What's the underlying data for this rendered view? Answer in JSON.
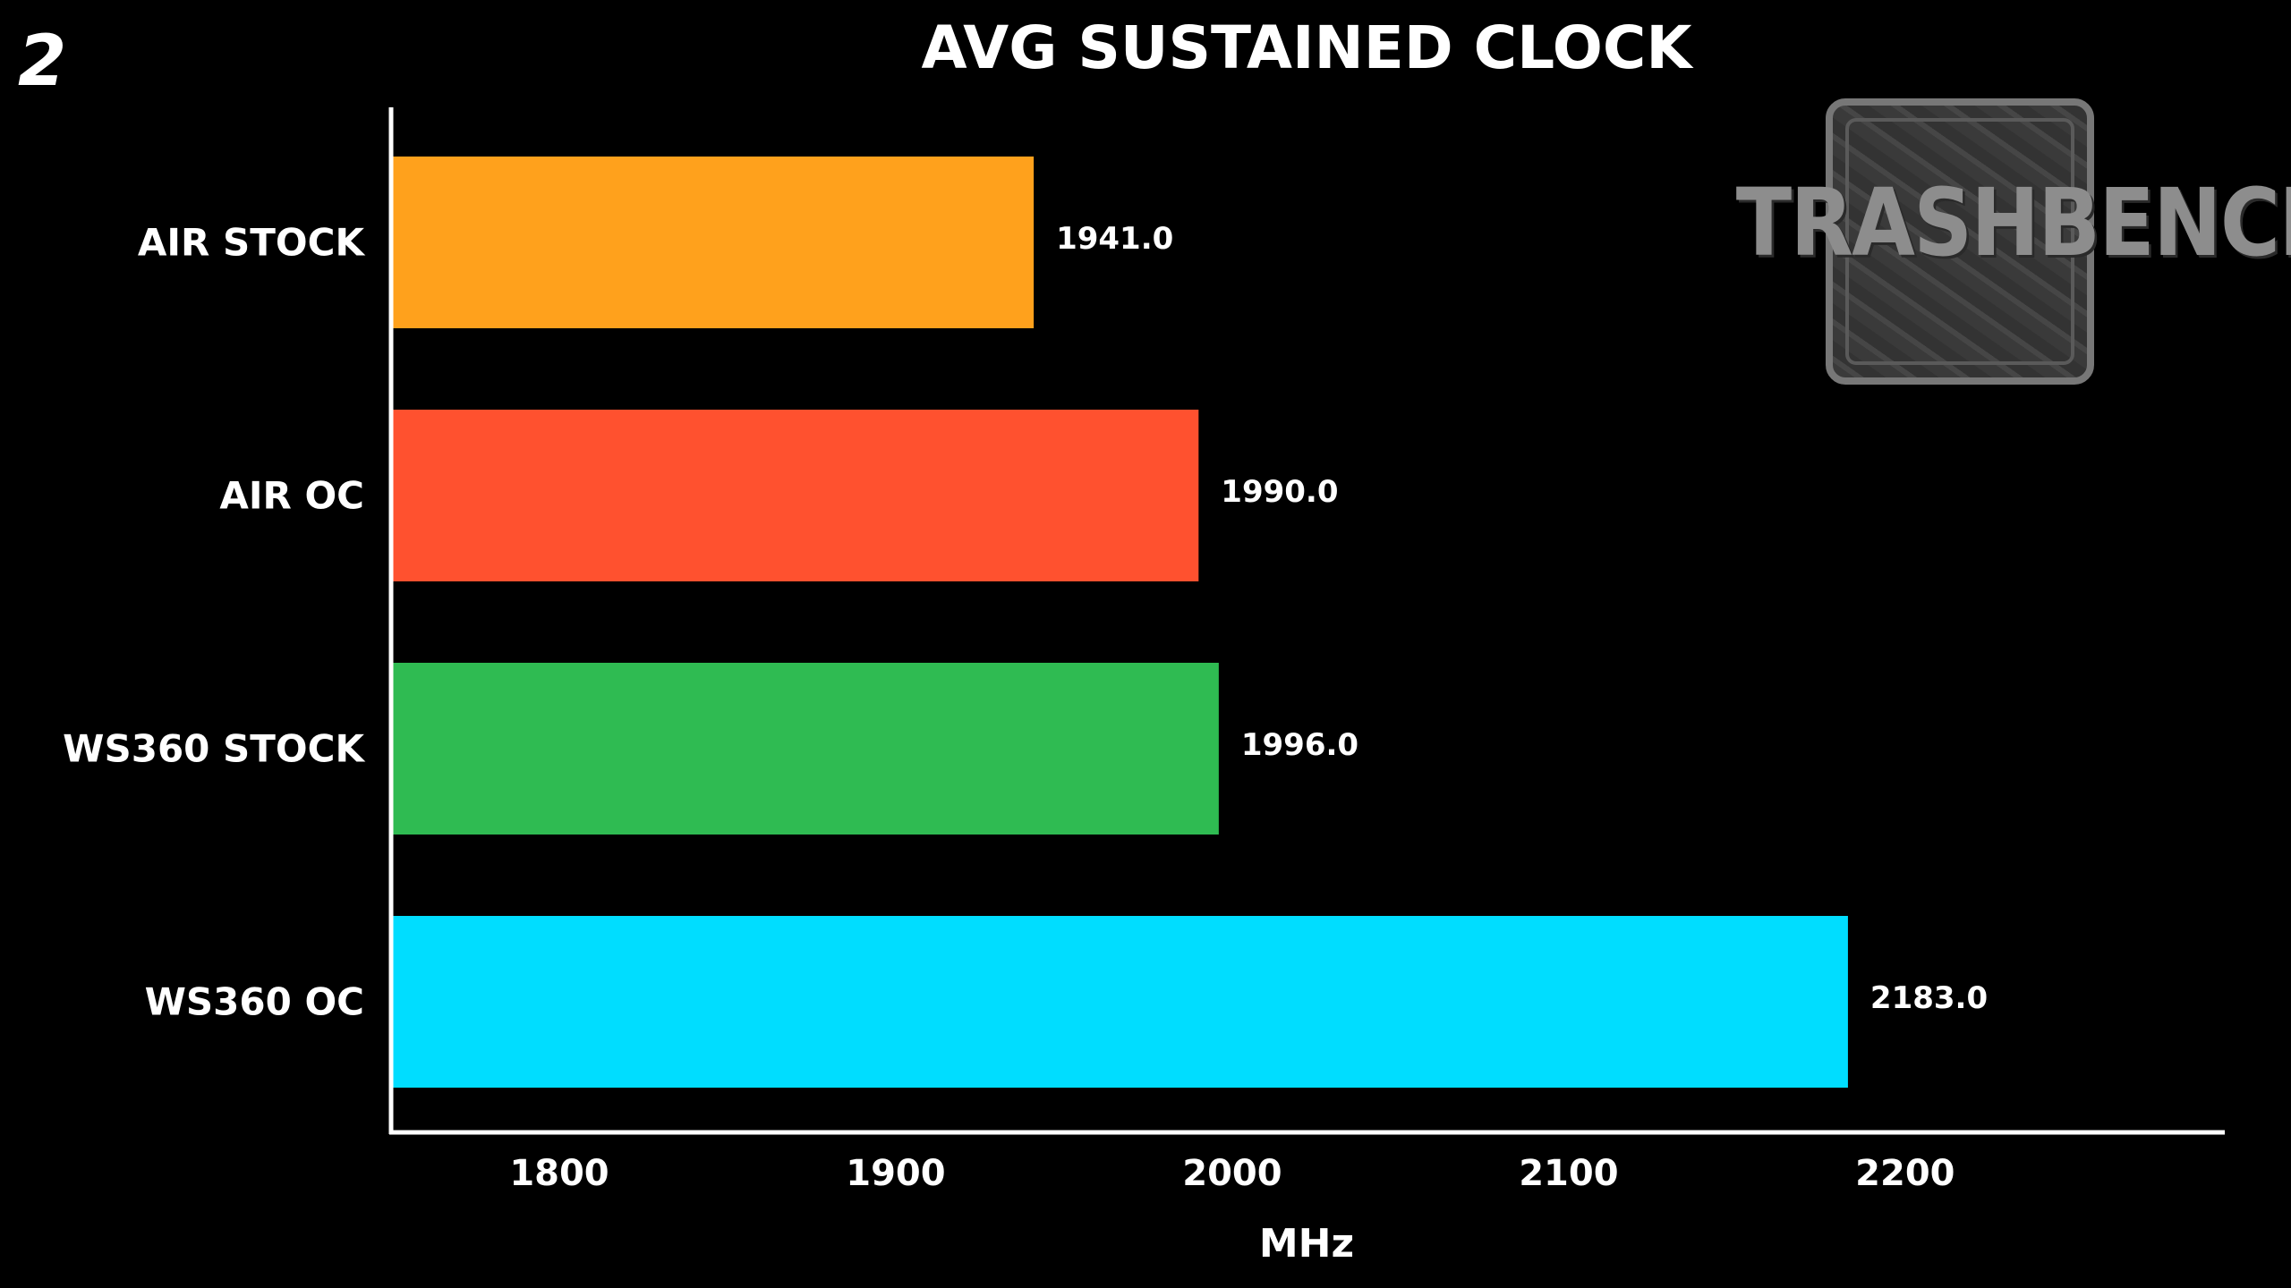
{
  "page_number": "2",
  "logo": {
    "text": "TRASHBENCH"
  },
  "chart_data": {
    "type": "bar",
    "orientation": "horizontal",
    "title": "AVG SUSTAINED CLOCK",
    "xlabel": "MHz",
    "ylabel": "",
    "categories": [
      "AIR STOCK",
      "AIR OC",
      "WS360 STOCK",
      "WS360 OC"
    ],
    "values": [
      1941.0,
      1990.0,
      1996.0,
      2183.0
    ],
    "data_labels": [
      "1941.0",
      "1990.0",
      "1996.0",
      "2183.0"
    ],
    "colors": [
      "#ffa11c",
      "#ff512f",
      "#2fbb52",
      "#00ddff"
    ],
    "xlim": [
      1750,
      2295
    ],
    "xticks": [
      1800,
      1900,
      2000,
      2100,
      2200
    ],
    "grid": false,
    "legend": "none"
  }
}
